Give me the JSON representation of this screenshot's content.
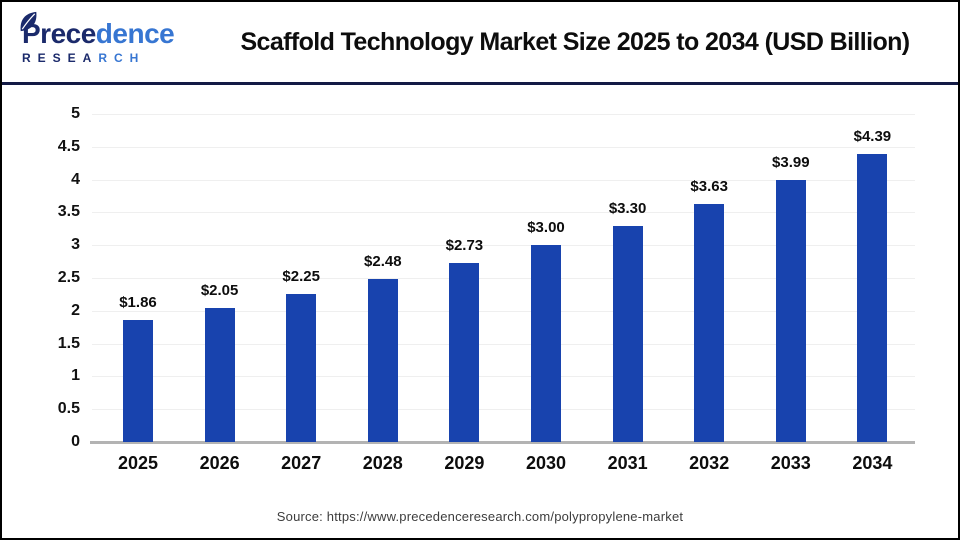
{
  "page": {
    "background": "#ffffff",
    "border_color": "#000000"
  },
  "header": {
    "logo": {
      "brand": {
        "part1": "Prece",
        "part2": "dence"
      },
      "research": {
        "part1": "RESEA",
        "part2": "RCH"
      },
      "colors": {
        "navy": "#1b2a6b",
        "blue": "#3776d2"
      }
    },
    "title": "Scaffold Technology Market Size 2025 to 2034 (USD Billion)",
    "divider_color": "#131a45"
  },
  "chart_data": {
    "type": "bar",
    "title": "Scaffold Technology Market Size 2025 to 2034 (USD Billion)",
    "categories": [
      "2025",
      "2026",
      "2027",
      "2028",
      "2029",
      "2030",
      "2031",
      "2032",
      "2033",
      "2034"
    ],
    "values": [
      1.86,
      2.05,
      2.25,
      2.48,
      2.73,
      3.0,
      3.3,
      3.63,
      3.99,
      4.39
    ],
    "value_labels": [
      "$1.86",
      "$2.05",
      "$2.25",
      "$2.48",
      "$2.73",
      "$3.00",
      "$3.30",
      "$3.63",
      "$3.99",
      "$4.39"
    ],
    "xlabel": "",
    "ylabel": "",
    "ylim": [
      0,
      5
    ],
    "ytick_step": 0.5,
    "yticks": [
      "5",
      "4.5",
      "4",
      "3.5",
      "3",
      "2.5",
      "2",
      "1.5",
      "1",
      "0.5",
      "0"
    ],
    "grid": true,
    "legend": false,
    "bar_color": "#1843ae",
    "grid_color": "#efefef",
    "axis_line_color": "#b3b3b3",
    "label_color": "#000000"
  },
  "footer": {
    "source": "Source: https://www.precedenceresearch.com/polypropylene-market"
  }
}
